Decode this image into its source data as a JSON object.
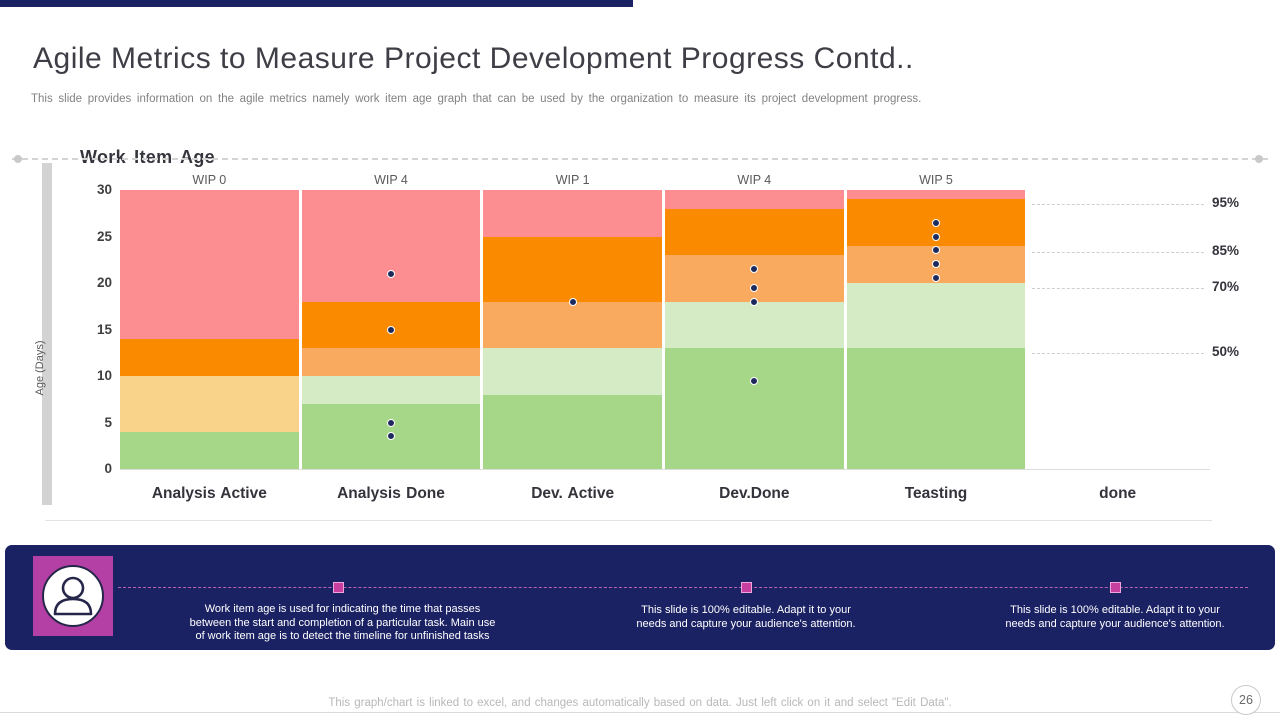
{
  "header": {
    "top_bar_color": "#1B2264",
    "title": "Agile Metrics to Measure Project Development Progress Contd..",
    "subtitle": "This slide provides information on the agile metrics namely work item age graph that can be used by the organization to measure its project development progress."
  },
  "chart": {
    "heading": "Work Item Age"
  },
  "chart_data": {
    "type": "stacked-column-bands",
    "title": "Work Item Age",
    "ylabel": "Age (Days)",
    "ylim": [
      0,
      30
    ],
    "yticks": [
      0,
      5,
      10,
      15,
      20,
      25,
      30
    ],
    "grid": "percentile dashed lines on right side only",
    "legend_position": "none",
    "categories": [
      "Analysis Active",
      "Analysis Done",
      "Dev. Active",
      "Dev.Done",
      "Teasting",
      "done"
    ],
    "wip_labels": [
      "WIP 0",
      "WIP 4",
      "WIP 1",
      "WIP 4",
      "WIP 5",
      ""
    ],
    "palette": {
      "pink": "#FC8D90",
      "orange": "#FA8A00",
      "light_orange": "#FAAA5E",
      "tan": "#FAD38B",
      "light_green": "#D4EBC6",
      "green": "#A6D688",
      "dot": "#1F2A5C"
    },
    "columns": [
      {
        "category": "Analysis Active",
        "wip": "WIP 0",
        "bands": [
          {
            "from": 0,
            "to": 4,
            "color": "green"
          },
          {
            "from": 4,
            "to": 10,
            "color": "tan"
          },
          {
            "from": 10,
            "to": 14,
            "color": "orange"
          },
          {
            "from": 14,
            "to": 30,
            "color": "pink"
          }
        ],
        "dots": []
      },
      {
        "category": "Analysis Done",
        "wip": "WIP 4",
        "bands": [
          {
            "from": 0,
            "to": 7,
            "color": "green"
          },
          {
            "from": 7,
            "to": 10,
            "color": "light_green"
          },
          {
            "from": 10,
            "to": 13,
            "color": "light_orange"
          },
          {
            "from": 13,
            "to": 18,
            "color": "orange"
          },
          {
            "from": 18,
            "to": 30,
            "color": "pink"
          }
        ],
        "dots": [
          21,
          15,
          5,
          3.5
        ]
      },
      {
        "category": "Dev. Active",
        "wip": "WIP 1",
        "bands": [
          {
            "from": 0,
            "to": 8,
            "color": "green"
          },
          {
            "from": 8,
            "to": 13,
            "color": "light_green"
          },
          {
            "from": 13,
            "to": 18,
            "color": "light_orange"
          },
          {
            "from": 18,
            "to": 25,
            "color": "orange"
          },
          {
            "from": 25,
            "to": 30,
            "color": "pink"
          }
        ],
        "dots": [
          18
        ]
      },
      {
        "category": "Dev.Done",
        "wip": "WIP 4",
        "bands": [
          {
            "from": 0,
            "to": 13,
            "color": "green"
          },
          {
            "from": 13,
            "to": 18,
            "color": "light_green"
          },
          {
            "from": 18,
            "to": 23,
            "color": "light_orange"
          },
          {
            "from": 23,
            "to": 28,
            "color": "orange"
          },
          {
            "from": 28,
            "to": 30,
            "color": "pink"
          }
        ],
        "dots": [
          21.5,
          19.5,
          18,
          9.5
        ]
      },
      {
        "category": "Teasting",
        "wip": "WIP 5",
        "bands": [
          {
            "from": 0,
            "to": 13,
            "color": "green"
          },
          {
            "from": 13,
            "to": 20,
            "color": "light_green"
          },
          {
            "from": 20,
            "to": 24,
            "color": "light_orange"
          },
          {
            "from": 24,
            "to": 29,
            "color": "orange"
          },
          {
            "from": 29,
            "to": 30,
            "color": "pink"
          }
        ],
        "dots": [
          26.5,
          25,
          23.5,
          22,
          20.5
        ]
      },
      {
        "category": "done",
        "wip": "",
        "bands": [],
        "dots": []
      }
    ],
    "percentiles": [
      {
        "label": "95%",
        "value": 28.5
      },
      {
        "label": "85%",
        "value": 23.3
      },
      {
        "label": "70%",
        "value": 19.5
      },
      {
        "label": "50%",
        "value": 12.5
      }
    ]
  },
  "footer_banner": {
    "background_color": "#1B2264",
    "icon_tile_color": "#B440A5",
    "icon": "person-icon",
    "note1": "Work item age is used for indicating the time that passes\nbetween the start and completion  of a particular task. Main  use\nof work item age is to detect the timeline  for unfinished tasks",
    "note2": "This slide is 100% editable.  Adapt it to your\nneeds and capture your audience's attention.",
    "note3": "This slide is 100% editable.  Adapt it to your\nneeds and capture your audience's attention."
  },
  "bottom": {
    "note": "This graph/chart is linked to excel,  and changes automatically based on data. Just left click on it and select \"Edit Data\".",
    "page_number": "26"
  }
}
